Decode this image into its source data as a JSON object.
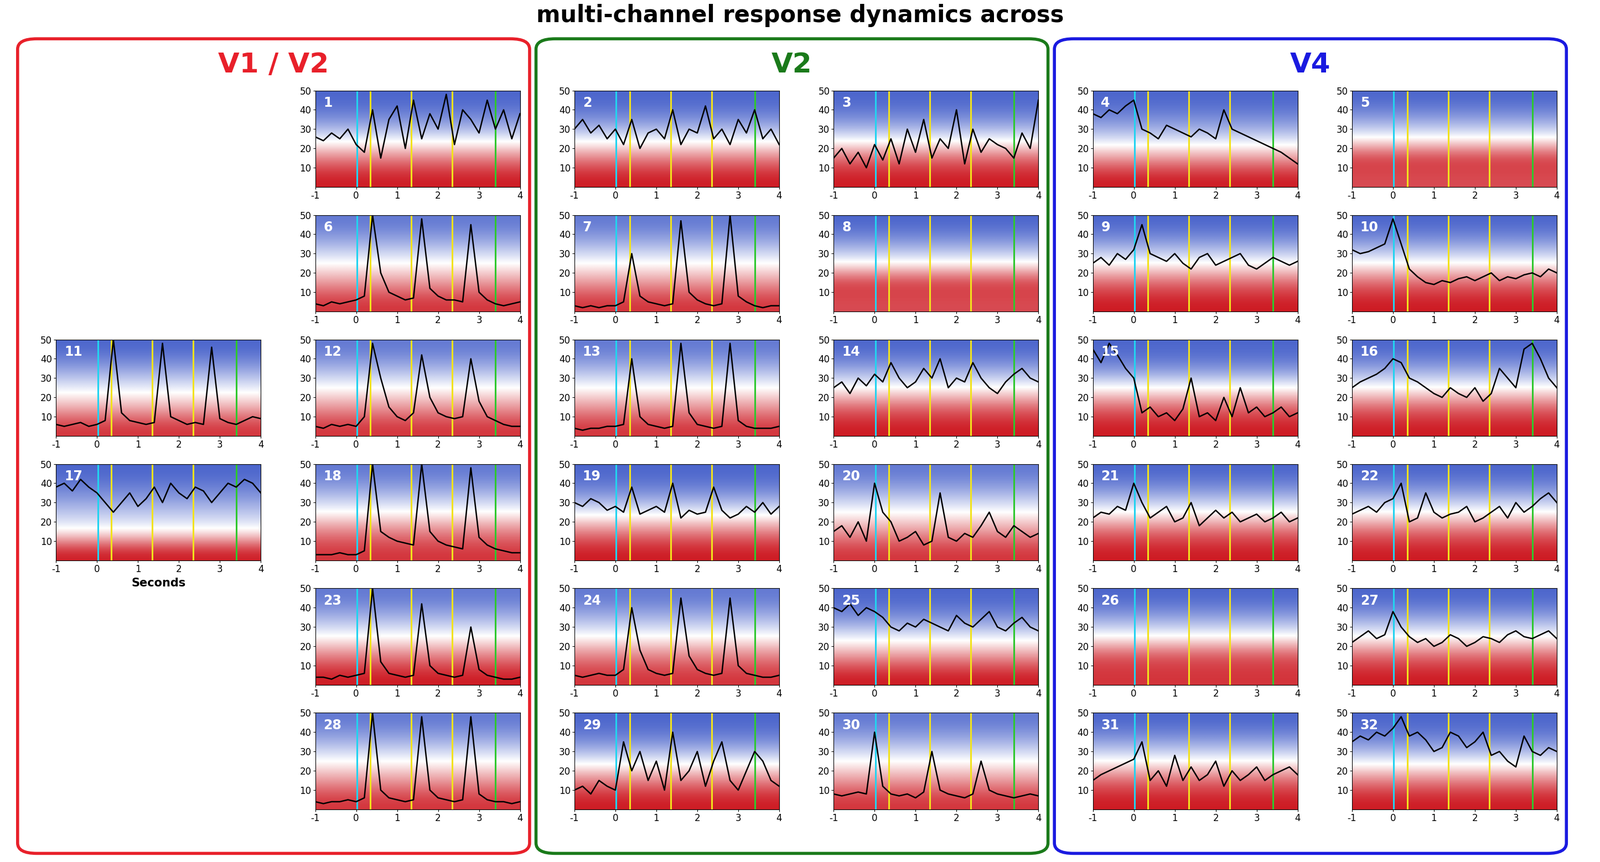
{
  "chart_data": {
    "type": "heatmap",
    "title": "multi-channel response dynamics across",
    "xlabel": {
      "text": "Seconds",
      "panel": "17"
    },
    "x": [
      -1.0,
      -0.8,
      -0.6,
      -0.4,
      -0.2,
      0.0,
      0.2,
      0.4,
      0.6,
      0.8,
      1.0,
      1.2,
      1.4,
      1.6,
      1.8,
      2.0,
      2.2,
      2.4,
      2.6,
      2.8,
      3.0,
      3.2,
      3.4,
      3.6,
      3.8,
      4.0
    ],
    "xlim": [
      -1,
      4
    ],
    "xticks": [
      -1,
      0,
      1,
      2,
      3,
      4
    ],
    "ylim": [
      0,
      50
    ],
    "yticks": [
      10,
      20,
      30,
      40,
      50
    ],
    "frequency_bins": [
      0,
      10,
      20,
      30,
      40,
      50
    ],
    "color_range": [
      0,
      1
    ],
    "events": [
      {
        "x": 0.02,
        "color": "#22d3f0"
      },
      {
        "x": 0.35,
        "color": "#f2e21c"
      },
      {
        "x": 1.35,
        "color": "#f2e21c"
      },
      {
        "x": 2.35,
        "color": "#f2e21c"
      },
      {
        "x": 3.4,
        "color": "#2ec82e"
      }
    ],
    "regions": [
      {
        "label": "V1 / V2",
        "color": "#e8202a",
        "rows": [
          [
            null,
            "1"
          ],
          [
            null,
            "6"
          ],
          [
            "11",
            "12"
          ],
          [
            "17",
            "18"
          ],
          [
            null,
            "23"
          ],
          [
            null,
            "28"
          ]
        ]
      },
      {
        "label": "V2",
        "color": "#1a7a1a",
        "rows": [
          [
            "2",
            "3"
          ],
          [
            "7",
            "8"
          ],
          [
            "13",
            "14"
          ],
          [
            "19",
            "20"
          ],
          [
            "24",
            "25"
          ],
          [
            "29",
            "30"
          ]
        ]
      },
      {
        "label": "V4",
        "color": "#1a1ae0",
        "rows": [
          [
            "4",
            "5"
          ],
          [
            "9",
            "10"
          ],
          [
            "15",
            "16"
          ],
          [
            "21",
            "22"
          ],
          [
            "26",
            "27"
          ],
          [
            "31",
            "32"
          ]
        ]
      }
    ],
    "panels": {
      "1": {
        "power": [
          0.95,
          0.75,
          0.45,
          0.2,
          0.1
        ],
        "trace": [
          26,
          24,
          28,
          25,
          30,
          22,
          18,
          40,
          15,
          35,
          42,
          20,
          45,
          25,
          38,
          30,
          48,
          22,
          40,
          35,
          28,
          45,
          30,
          40,
          25,
          38
        ]
      },
      "2": {
        "power": [
          0.95,
          0.75,
          0.45,
          0.2,
          0.1
        ],
        "trace": [
          30,
          35,
          28,
          32,
          25,
          30,
          22,
          35,
          20,
          28,
          30,
          25,
          40,
          22,
          30,
          28,
          42,
          25,
          30,
          22,
          35,
          28,
          40,
          25,
          30,
          22
        ]
      },
      "3": {
        "power": [
          0.95,
          0.8,
          0.45,
          0.2,
          0.1
        ],
        "trace": [
          15,
          20,
          12,
          18,
          10,
          22,
          14,
          25,
          12,
          30,
          18,
          35,
          15,
          25,
          20,
          40,
          12,
          30,
          18,
          25,
          22,
          20,
          15,
          28,
          20,
          45
        ]
      },
      "4": {
        "power": [
          0.95,
          0.7,
          0.4,
          0.2,
          0.1
        ],
        "trace": [
          38,
          36,
          40,
          38,
          42,
          45,
          30,
          28,
          25,
          32,
          30,
          28,
          26,
          30,
          28,
          25,
          40,
          30,
          28,
          26,
          24,
          22,
          20,
          18,
          15,
          12
        ]
      },
      "5": {
        "power": [
          0.85,
          0.9,
          0.5,
          0.25,
          0.1
        ],
        "trace": null
      },
      "6": {
        "power": [
          0.9,
          0.7,
          0.5,
          0.3,
          0.15
        ],
        "trace": [
          4,
          3,
          5,
          4,
          5,
          6,
          8,
          50,
          20,
          10,
          8,
          6,
          7,
          48,
          12,
          8,
          6,
          6,
          5,
          45,
          10,
          6,
          4,
          3,
          4,
          5
        ]
      },
      "7": {
        "power": [
          0.9,
          0.7,
          0.5,
          0.3,
          0.15
        ],
        "trace": [
          3,
          2,
          3,
          2,
          3,
          3,
          5,
          30,
          8,
          5,
          4,
          3,
          4,
          47,
          10,
          6,
          4,
          3,
          4,
          50,
          8,
          5,
          3,
          2,
          3,
          3
        ]
      },
      "8": {
        "power": [
          0.85,
          0.9,
          0.5,
          0.25,
          0.1
        ],
        "trace": null
      },
      "9": {
        "power": [
          0.95,
          0.8,
          0.5,
          0.25,
          0.1
        ],
        "trace": [
          25,
          28,
          24,
          30,
          27,
          32,
          45,
          30,
          28,
          26,
          30,
          25,
          22,
          28,
          30,
          24,
          26,
          28,
          30,
          24,
          22,
          25,
          28,
          26,
          24,
          26
        ]
      },
      "10": {
        "power": [
          0.95,
          0.8,
          0.5,
          0.25,
          0.1
        ],
        "trace": [
          32,
          30,
          31,
          33,
          35,
          48,
          35,
          22,
          18,
          15,
          14,
          16,
          15,
          17,
          18,
          16,
          18,
          20,
          16,
          18,
          17,
          19,
          20,
          18,
          22,
          20
        ]
      },
      "11": {
        "power": [
          0.9,
          0.65,
          0.45,
          0.25,
          0.1
        ],
        "trace": [
          6,
          5,
          6,
          7,
          5,
          6,
          8,
          50,
          12,
          8,
          7,
          6,
          7,
          48,
          10,
          8,
          6,
          7,
          6,
          46,
          9,
          7,
          6,
          8,
          10,
          9
        ]
      },
      "12": {
        "power": [
          0.9,
          0.7,
          0.5,
          0.3,
          0.15
        ],
        "trace": [
          5,
          4,
          6,
          5,
          6,
          5,
          10,
          48,
          30,
          15,
          10,
          8,
          12,
          42,
          20,
          12,
          10,
          9,
          10,
          40,
          18,
          10,
          8,
          6,
          5,
          5
        ]
      },
      "13": {
        "power": [
          0.9,
          0.7,
          0.5,
          0.3,
          0.15
        ],
        "trace": [
          4,
          3,
          4,
          4,
          5,
          5,
          6,
          40,
          10,
          6,
          5,
          4,
          5,
          48,
          12,
          6,
          5,
          4,
          5,
          48,
          8,
          5,
          4,
          4,
          4,
          5
        ]
      },
      "14": {
        "power": [
          0.95,
          0.8,
          0.5,
          0.25,
          0.1
        ],
        "trace": [
          25,
          28,
          22,
          30,
          26,
          32,
          28,
          38,
          30,
          25,
          28,
          35,
          30,
          40,
          25,
          30,
          28,
          38,
          30,
          25,
          22,
          28,
          32,
          35,
          30,
          28
        ]
      },
      "15": {
        "power": [
          0.95,
          0.8,
          0.5,
          0.2,
          0.1
        ],
        "trace": [
          45,
          38,
          48,
          42,
          35,
          30,
          12,
          15,
          10,
          12,
          8,
          14,
          30,
          10,
          12,
          8,
          20,
          10,
          25,
          12,
          15,
          10,
          12,
          15,
          10,
          12
        ]
      },
      "16": {
        "power": [
          0.95,
          0.8,
          0.5,
          0.25,
          0.1
        ],
        "trace": [
          25,
          28,
          30,
          32,
          35,
          40,
          38,
          30,
          28,
          25,
          22,
          20,
          25,
          22,
          20,
          25,
          18,
          22,
          35,
          30,
          25,
          45,
          48,
          40,
          30,
          25
        ]
      },
      "17": {
        "power": [
          0.95,
          0.5,
          0.35,
          0.2,
          0.1
        ],
        "trace": [
          38,
          40,
          36,
          42,
          38,
          35,
          30,
          25,
          30,
          35,
          28,
          32,
          38,
          30,
          40,
          35,
          32,
          38,
          36,
          30,
          35,
          40,
          38,
          42,
          40,
          35
        ]
      },
      "18": {
        "power": [
          0.9,
          0.75,
          0.5,
          0.3,
          0.15
        ],
        "trace": [
          3,
          3,
          3,
          4,
          3,
          3,
          5,
          50,
          15,
          12,
          10,
          9,
          8,
          50,
          15,
          10,
          8,
          7,
          6,
          48,
          12,
          8,
          6,
          5,
          4,
          4
        ]
      },
      "19": {
        "power": [
          0.95,
          0.75,
          0.45,
          0.2,
          0.1
        ],
        "trace": [
          30,
          28,
          32,
          30,
          26,
          28,
          25,
          38,
          24,
          26,
          28,
          25,
          40,
          22,
          26,
          24,
          25,
          38,
          26,
          22,
          24,
          28,
          25,
          30,
          24,
          28
        ]
      },
      "20": {
        "power": [
          0.9,
          0.7,
          0.5,
          0.3,
          0.15
        ],
        "trace": [
          15,
          18,
          12,
          20,
          10,
          40,
          25,
          20,
          10,
          12,
          15,
          8,
          10,
          35,
          12,
          10,
          14,
          12,
          18,
          25,
          15,
          12,
          18,
          15,
          12,
          14
        ]
      },
      "21": {
        "power": [
          0.95,
          0.8,
          0.5,
          0.25,
          0.1
        ],
        "trace": [
          22,
          25,
          24,
          28,
          26,
          40,
          30,
          22,
          25,
          28,
          20,
          22,
          30,
          18,
          22,
          26,
          22,
          25,
          20,
          22,
          24,
          20,
          22,
          25,
          20,
          22
        ]
      },
      "22": {
        "power": [
          0.95,
          0.8,
          0.5,
          0.25,
          0.1
        ],
        "trace": [
          24,
          26,
          28,
          25,
          30,
          32,
          40,
          20,
          22,
          35,
          25,
          22,
          24,
          25,
          28,
          20,
          22,
          25,
          28,
          22,
          30,
          25,
          28,
          32,
          35,
          30
        ]
      },
      "23": {
        "power": [
          0.95,
          0.75,
          0.5,
          0.3,
          0.15
        ],
        "trace": [
          4,
          4,
          3,
          5,
          4,
          5,
          6,
          50,
          12,
          6,
          5,
          4,
          5,
          42,
          10,
          6,
          5,
          4,
          5,
          30,
          8,
          5,
          4,
          3,
          3,
          4
        ]
      },
      "24": {
        "power": [
          0.9,
          0.75,
          0.5,
          0.3,
          0.15
        ],
        "trace": [
          5,
          4,
          5,
          6,
          5,
          5,
          8,
          40,
          18,
          8,
          6,
          5,
          6,
          45,
          15,
          8,
          6,
          5,
          6,
          45,
          10,
          6,
          5,
          4,
          4,
          5
        ]
      },
      "25": {
        "power": [
          0.95,
          0.7,
          0.45,
          0.2,
          0.1
        ],
        "trace": [
          40,
          38,
          42,
          36,
          40,
          38,
          35,
          30,
          28,
          32,
          30,
          34,
          32,
          30,
          28,
          36,
          32,
          30,
          34,
          38,
          30,
          28,
          32,
          35,
          30,
          28
        ]
      },
      "26": {
        "power": [
          0.9,
          0.85,
          0.5,
          0.25,
          0.1
        ],
        "trace": null
      },
      "27": {
        "power": [
          0.95,
          0.8,
          0.5,
          0.25,
          0.1
        ],
        "trace": [
          22,
          25,
          28,
          24,
          26,
          38,
          30,
          25,
          22,
          24,
          20,
          22,
          26,
          24,
          20,
          22,
          25,
          24,
          22,
          26,
          28,
          25,
          24,
          26,
          28,
          24
        ]
      },
      "28": {
        "power": [
          0.9,
          0.7,
          0.5,
          0.3,
          0.15
        ],
        "trace": [
          4,
          3,
          4,
          4,
          5,
          4,
          6,
          50,
          10,
          6,
          5,
          4,
          5,
          48,
          10,
          6,
          5,
          4,
          5,
          48,
          8,
          5,
          4,
          4,
          3,
          4
        ]
      },
      "29": {
        "power": [
          0.95,
          0.75,
          0.45,
          0.2,
          0.1
        ],
        "trace": [
          10,
          12,
          8,
          15,
          12,
          10,
          35,
          20,
          30,
          15,
          25,
          10,
          40,
          15,
          20,
          30,
          12,
          25,
          35,
          15,
          10,
          20,
          30,
          25,
          15,
          12
        ]
      },
      "30": {
        "power": [
          0.9,
          0.7,
          0.5,
          0.3,
          0.15
        ],
        "trace": [
          8,
          7,
          8,
          9,
          8,
          40,
          12,
          8,
          7,
          8,
          6,
          9,
          30,
          10,
          8,
          7,
          6,
          8,
          25,
          10,
          8,
          7,
          6,
          7,
          8,
          7
        ]
      },
      "31": {
        "power": [
          0.95,
          0.8,
          0.5,
          0.25,
          0.1
        ],
        "trace": [
          15,
          18,
          20,
          22,
          24,
          26,
          35,
          15,
          20,
          12,
          28,
          15,
          22,
          15,
          18,
          25,
          12,
          20,
          15,
          18,
          22,
          15,
          18,
          20,
          22,
          18
        ]
      },
      "32": {
        "power": [
          0.95,
          0.75,
          0.45,
          0.2,
          0.1
        ],
        "trace": [
          35,
          38,
          36,
          40,
          38,
          42,
          48,
          38,
          40,
          36,
          30,
          32,
          40,
          38,
          32,
          35,
          40,
          28,
          30,
          25,
          22,
          38,
          30,
          28,
          32,
          30
        ]
      }
    }
  }
}
